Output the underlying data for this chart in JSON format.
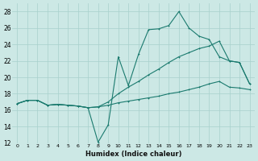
{
  "xlabel": "Humidex (Indice chaleur)",
  "background_color": "#cce8e5",
  "grid_color": "#a8d0cc",
  "line_color": "#1a7a6e",
  "xlim": [
    -0.5,
    23.5
  ],
  "ylim": [
    12,
    29
  ],
  "xticks": [
    0,
    1,
    2,
    3,
    4,
    5,
    6,
    7,
    8,
    9,
    10,
    11,
    12,
    13,
    14,
    15,
    16,
    17,
    18,
    19,
    20,
    21,
    22,
    23
  ],
  "yticks": [
    12,
    14,
    16,
    18,
    20,
    22,
    24,
    26,
    28
  ],
  "line1_x": [
    0,
    1,
    2,
    3,
    4,
    5,
    6,
    7,
    8,
    9,
    10,
    11,
    12,
    13,
    14,
    15,
    16,
    17,
    18,
    19,
    20,
    21,
    22,
    23
  ],
  "line1_y": [
    16.8,
    17.2,
    17.2,
    16.6,
    16.7,
    16.6,
    16.5,
    16.3,
    12.1,
    14.2,
    22.5,
    19.0,
    22.8,
    25.8,
    25.9,
    26.3,
    28.0,
    26.0,
    25.0,
    24.6,
    22.5,
    22.0,
    21.8,
    19.2
  ],
  "line2_x": [
    0,
    1,
    2,
    3,
    4,
    5,
    6,
    7,
    8,
    9,
    10,
    11,
    12,
    13,
    14,
    15,
    16,
    17,
    18,
    19,
    20,
    21,
    22,
    23
  ],
  "line2_y": [
    16.8,
    17.2,
    17.2,
    16.6,
    16.7,
    16.6,
    16.5,
    16.3,
    16.4,
    17.0,
    18.0,
    18.8,
    19.5,
    20.3,
    21.0,
    21.8,
    22.5,
    23.0,
    23.5,
    23.8,
    24.4,
    22.0,
    21.8,
    19.2
  ],
  "line3_x": [
    0,
    1,
    2,
    3,
    4,
    5,
    6,
    7,
    8,
    9,
    10,
    11,
    12,
    13,
    14,
    15,
    16,
    17,
    18,
    19,
    20,
    21,
    22,
    23
  ],
  "line3_y": [
    16.8,
    17.2,
    17.2,
    16.6,
    16.7,
    16.6,
    16.5,
    16.3,
    16.4,
    16.6,
    16.9,
    17.1,
    17.3,
    17.5,
    17.7,
    18.0,
    18.2,
    18.5,
    18.8,
    19.2,
    19.5,
    18.8,
    18.7,
    18.5
  ]
}
